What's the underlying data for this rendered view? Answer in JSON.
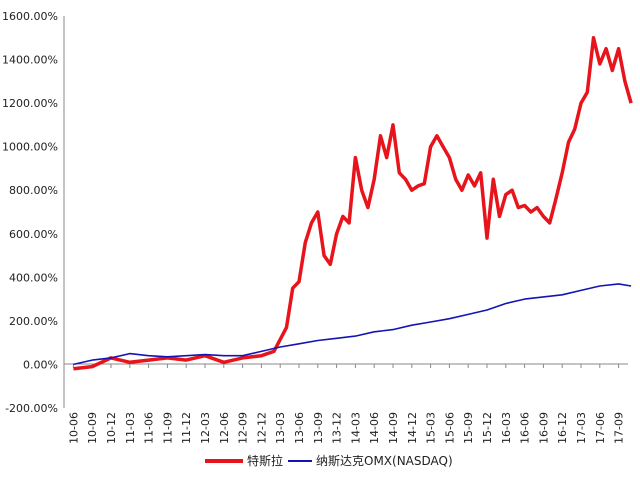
{
  "chart_data": {
    "type": "line",
    "title": "",
    "xlabel": "",
    "ylabel": "",
    "ylim": [
      -200,
      1600
    ],
    "y_ticks": [
      -200,
      0,
      200,
      400,
      600,
      800,
      1000,
      1200,
      1400,
      1600
    ],
    "y_tick_labels": [
      "-200.00%",
      "0.00%",
      "200.00%",
      "400.00%",
      "600.00%",
      "800.00%",
      "1000.00%",
      "1200.00%",
      "1400.00%",
      "1600.00%"
    ],
    "x_tick_labels": [
      "10-06",
      "10-09",
      "10-12",
      "11-03",
      "11-06",
      "11-09",
      "11-12",
      "12-03",
      "12-06",
      "12-09",
      "12-12",
      "13-03",
      "13-06",
      "13-09",
      "13-12",
      "14-03",
      "14-06",
      "14-09",
      "14-12",
      "15-03",
      "15-06",
      "15-09",
      "15-12",
      "16-03",
      "16-06",
      "16-09",
      "16-12",
      "17-03",
      "17-06",
      "17-09"
    ],
    "grid": false,
    "legend": "bottom",
    "series": [
      {
        "name": "特斯拉",
        "color": "#e8141c",
        "x": [
          "10-06",
          "10-09",
          "10-12",
          "11-03",
          "11-06",
          "11-09",
          "11-12",
          "12-03",
          "12-06",
          "12-09",
          "12-12",
          "13-02",
          "13-04",
          "13-05",
          "13-06",
          "13-07",
          "13-08",
          "13-09",
          "13-10",
          "13-11",
          "13-12",
          "14-01",
          "14-02",
          "14-03",
          "14-04",
          "14-05",
          "14-06",
          "14-07",
          "14-08",
          "14-09",
          "14-10",
          "14-11",
          "14-12",
          "15-01",
          "15-02",
          "15-03",
          "15-04",
          "15-05",
          "15-06",
          "15-07",
          "15-08",
          "15-09",
          "15-10",
          "15-11",
          "15-12",
          "16-01",
          "16-02",
          "16-03",
          "16-04",
          "16-05",
          "16-06",
          "16-07",
          "16-08",
          "16-09",
          "16-10",
          "16-11",
          "16-12",
          "17-01",
          "17-02",
          "17-03",
          "17-04",
          "17-05",
          "17-06",
          "17-07",
          "17-08",
          "17-09",
          "17-10",
          "17-11"
        ],
        "values": [
          -20,
          -10,
          30,
          10,
          20,
          30,
          20,
          40,
          10,
          30,
          40,
          60,
          170,
          350,
          380,
          560,
          650,
          700,
          500,
          460,
          600,
          680,
          650,
          950,
          800,
          720,
          850,
          1050,
          950,
          1100,
          880,
          850,
          800,
          820,
          830,
          1000,
          1050,
          1000,
          950,
          850,
          800,
          870,
          820,
          880,
          580,
          850,
          680,
          780,
          800,
          720,
          730,
          700,
          720,
          680,
          650,
          760,
          880,
          1020,
          1080,
          1200,
          1250,
          1500,
          1380,
          1450,
          1350,
          1450,
          1300,
          1200
        ]
      },
      {
        "name": "纳斯达克OMX(NASDAQ)",
        "color": "#1414b4",
        "x": [
          "10-06",
          "10-09",
          "10-12",
          "11-03",
          "11-06",
          "11-09",
          "11-12",
          "12-03",
          "12-06",
          "12-09",
          "12-12",
          "13-03",
          "13-06",
          "13-09",
          "13-12",
          "14-03",
          "14-06",
          "14-09",
          "14-12",
          "15-03",
          "15-06",
          "15-09",
          "15-12",
          "16-03",
          "16-06",
          "16-09",
          "16-12",
          "17-03",
          "17-06",
          "17-09",
          "17-11"
        ],
        "values": [
          0,
          20,
          30,
          50,
          40,
          35,
          40,
          45,
          40,
          40,
          60,
          80,
          95,
          110,
          120,
          130,
          150,
          160,
          180,
          195,
          210,
          230,
          250,
          280,
          300,
          310,
          320,
          340,
          360,
          370,
          360
        ]
      }
    ]
  }
}
